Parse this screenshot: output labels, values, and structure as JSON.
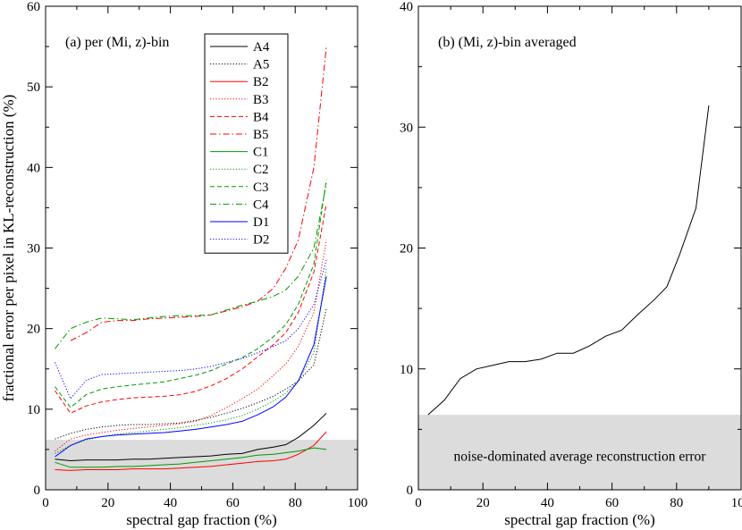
{
  "chart_data": [
    {
      "type": "line",
      "title": "(a) per (Mi, z)-bin",
      "xlabel": "spectral gap fraction (%)",
      "ylabel": "fractional error per pixel in KL-reconstruction (%)",
      "xlim": [
        0,
        100
      ],
      "ylim": [
        0,
        60
      ],
      "xticks": [
        0,
        20,
        40,
        60,
        80,
        100
      ],
      "yticks": [
        0,
        10,
        20,
        30,
        40,
        50,
        60
      ],
      "legend_position": "top-right",
      "shaded_band": [
        0,
        6.2
      ],
      "x": [
        3,
        8,
        13,
        18,
        23,
        28,
        33,
        38,
        43,
        48,
        53,
        58,
        63,
        68,
        73,
        77,
        81,
        86,
        90
      ],
      "series": [
        {
          "name": "A4",
          "color": "#000000",
          "dash": "solid",
          "values": [
            3.8,
            3.6,
            3.7,
            3.7,
            3.7,
            3.8,
            3.8,
            3.9,
            4.0,
            4.1,
            4.2,
            4.4,
            4.5,
            5.0,
            5.3,
            5.6,
            6.5,
            8.0,
            9.5
          ]
        },
        {
          "name": "A5",
          "color": "#000000",
          "dash": "dotted",
          "values": [
            6.3,
            7.0,
            7.5,
            7.8,
            8.0,
            8.1,
            8.1,
            8.2,
            8.3,
            8.6,
            9.0,
            9.5,
            10.1,
            10.8,
            11.6,
            12.5,
            13.5,
            15.5,
            22.5
          ]
        },
        {
          "name": "B2",
          "color": "#ff0000",
          "dash": "solid",
          "values": [
            2.5,
            2.4,
            2.5,
            2.5,
            2.5,
            2.6,
            2.6,
            2.6,
            2.7,
            2.8,
            2.9,
            3.1,
            3.3,
            3.5,
            3.6,
            3.8,
            4.4,
            5.5,
            7.2
          ]
        },
        {
          "name": "B3",
          "color": "#ff0000",
          "dash": "dotted",
          "values": [
            4.8,
            6.3,
            6.8,
            7.1,
            7.4,
            7.6,
            7.8,
            8.0,
            8.2,
            8.5,
            9.2,
            10.2,
            11.3,
            12.5,
            14.2,
            15.6,
            17.8,
            22.0,
            31.0
          ]
        },
        {
          "name": "B4",
          "color": "#ff0000",
          "dash": "dashed",
          "values": [
            12.3,
            9.5,
            10.4,
            10.9,
            11.2,
            11.4,
            11.5,
            11.6,
            11.8,
            12.2,
            12.9,
            13.8,
            15.0,
            16.5,
            18.0,
            19.5,
            22.0,
            27.0,
            35.5
          ]
        },
        {
          "name": "B5",
          "color": "#ff0000",
          "dash": "dashdot",
          "values": null,
          "x_override": [
            8,
            13,
            18,
            23,
            28,
            33,
            38,
            43,
            48,
            53,
            58,
            63,
            68,
            73,
            77,
            81,
            86,
            90
          ],
          "values_override": [
            18.5,
            19.5,
            20.8,
            21.0,
            21.0,
            21.2,
            21.3,
            21.4,
            21.5,
            21.7,
            22.2,
            22.7,
            23.4,
            25.0,
            27.5,
            31.0,
            40.0,
            55.0
          ]
        },
        {
          "name": "C1",
          "color": "#009900",
          "dash": "solid",
          "values": [
            3.4,
            2.8,
            2.8,
            2.8,
            2.9,
            2.9,
            3.0,
            3.1,
            3.2,
            3.4,
            3.6,
            3.8,
            4.0,
            4.3,
            4.4,
            4.6,
            4.8,
            5.2,
            5.0
          ]
        },
        {
          "name": "C2",
          "color": "#009900",
          "dash": "dotted",
          "values": [
            4.5,
            5.5,
            6.2,
            6.6,
            6.9,
            7.1,
            7.3,
            7.5,
            7.7,
            8.0,
            8.3,
            8.7,
            9.2,
            10.0,
            11.0,
            12.0,
            13.5,
            17.0,
            27.5
          ]
        },
        {
          "name": "C3",
          "color": "#009900",
          "dash": "dashed",
          "values": [
            12.8,
            10.2,
            11.8,
            12.5,
            12.8,
            13.0,
            13.2,
            13.4,
            13.8,
            14.2,
            14.8,
            15.6,
            16.4,
            17.5,
            19.0,
            20.5,
            23.0,
            28.0,
            38.5
          ]
        },
        {
          "name": "C4",
          "color": "#009900",
          "dash": "dashdot",
          "values": [
            17.5,
            20.0,
            20.8,
            21.3,
            21.2,
            21.1,
            21.3,
            21.5,
            21.6,
            21.6,
            21.7,
            22.3,
            22.9,
            23.4,
            24.0,
            24.8,
            26.5,
            30.0,
            38.0
          ]
        },
        {
          "name": "D1",
          "color": "#0000ff",
          "dash": "solid",
          "values": [
            4.1,
            5.5,
            6.3,
            6.6,
            6.8,
            6.9,
            7.0,
            7.1,
            7.3,
            7.5,
            7.8,
            8.1,
            8.5,
            9.3,
            10.3,
            11.5,
            13.5,
            18.0,
            26.5
          ]
        },
        {
          "name": "D2",
          "color": "#0000ff",
          "dash": "dotted",
          "values": [
            15.8,
            11.3,
            13.6,
            14.3,
            14.4,
            14.5,
            14.6,
            14.7,
            14.8,
            15.0,
            15.3,
            15.8,
            16.3,
            17.0,
            17.8,
            18.5,
            20.0,
            23.0,
            28.5
          ]
        }
      ]
    },
    {
      "type": "line",
      "title": "(b) (Mi, z)-bin averaged",
      "xlabel": "spectral gap fraction (%)",
      "ylabel": "",
      "xlim": [
        0,
        100
      ],
      "ylim": [
        0,
        40
      ],
      "xticks": [
        0,
        20,
        40,
        60,
        80,
        100
      ],
      "yticks": [
        0,
        10,
        20,
        30,
        40
      ],
      "shaded_band": [
        0,
        6.2
      ],
      "band_label": "noise-dominated average reconstruction error",
      "series": [
        {
          "name": "average",
          "color": "#000000",
          "dash": "solid",
          "x": [
            3,
            8,
            13,
            18,
            23,
            28,
            33,
            38,
            43,
            48,
            53,
            58,
            63,
            68,
            73,
            77,
            81,
            86,
            90
          ],
          "values": [
            6.2,
            7.4,
            9.2,
            10.0,
            10.3,
            10.6,
            10.6,
            10.8,
            11.3,
            11.3,
            11.9,
            12.7,
            13.2,
            14.5,
            15.7,
            16.8,
            19.5,
            23.3,
            31.8
          ]
        }
      ]
    }
  ]
}
